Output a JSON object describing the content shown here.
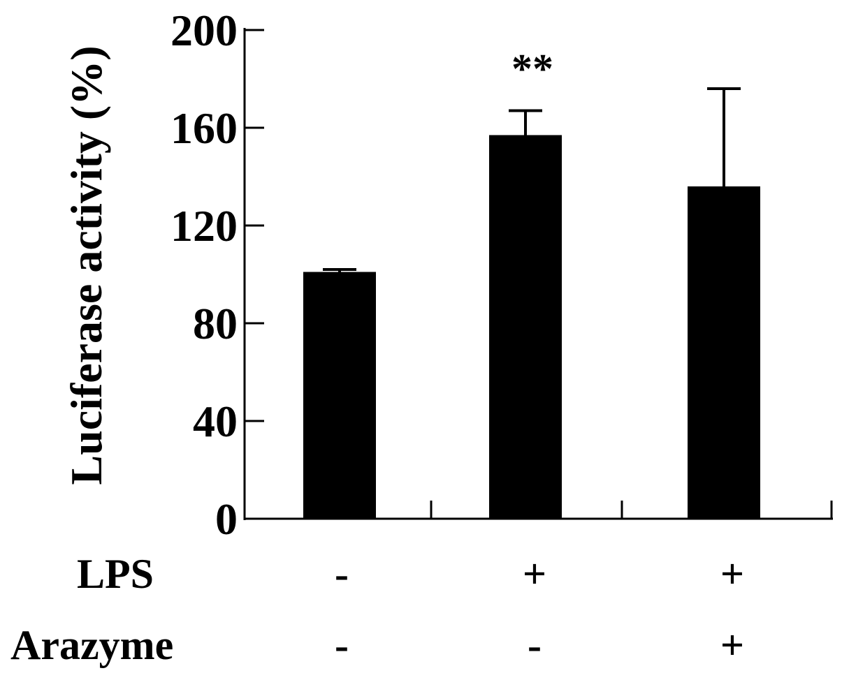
{
  "chart_data": {
    "type": "bar",
    "title": "",
    "xlabel": "",
    "ylabel": "Luciferase activity (%)",
    "ylim": [
      0,
      200
    ],
    "yticks": [
      "0",
      "40",
      "80",
      "120",
      "160",
      "200"
    ],
    "grid": false,
    "bar_color": "#000000",
    "categories": [
      "1",
      "2",
      "3"
    ],
    "values": [
      101,
      157,
      136
    ],
    "errors": [
      1,
      10,
      40
    ],
    "annotations": [
      {
        "category_index": 1,
        "text": "**"
      }
    ],
    "conditions": [
      {
        "label": "LPS",
        "signs": [
          "-",
          "+",
          "+"
        ]
      },
      {
        "label": "Arazyme",
        "signs": [
          "-",
          "-",
          "+"
        ]
      }
    ]
  }
}
